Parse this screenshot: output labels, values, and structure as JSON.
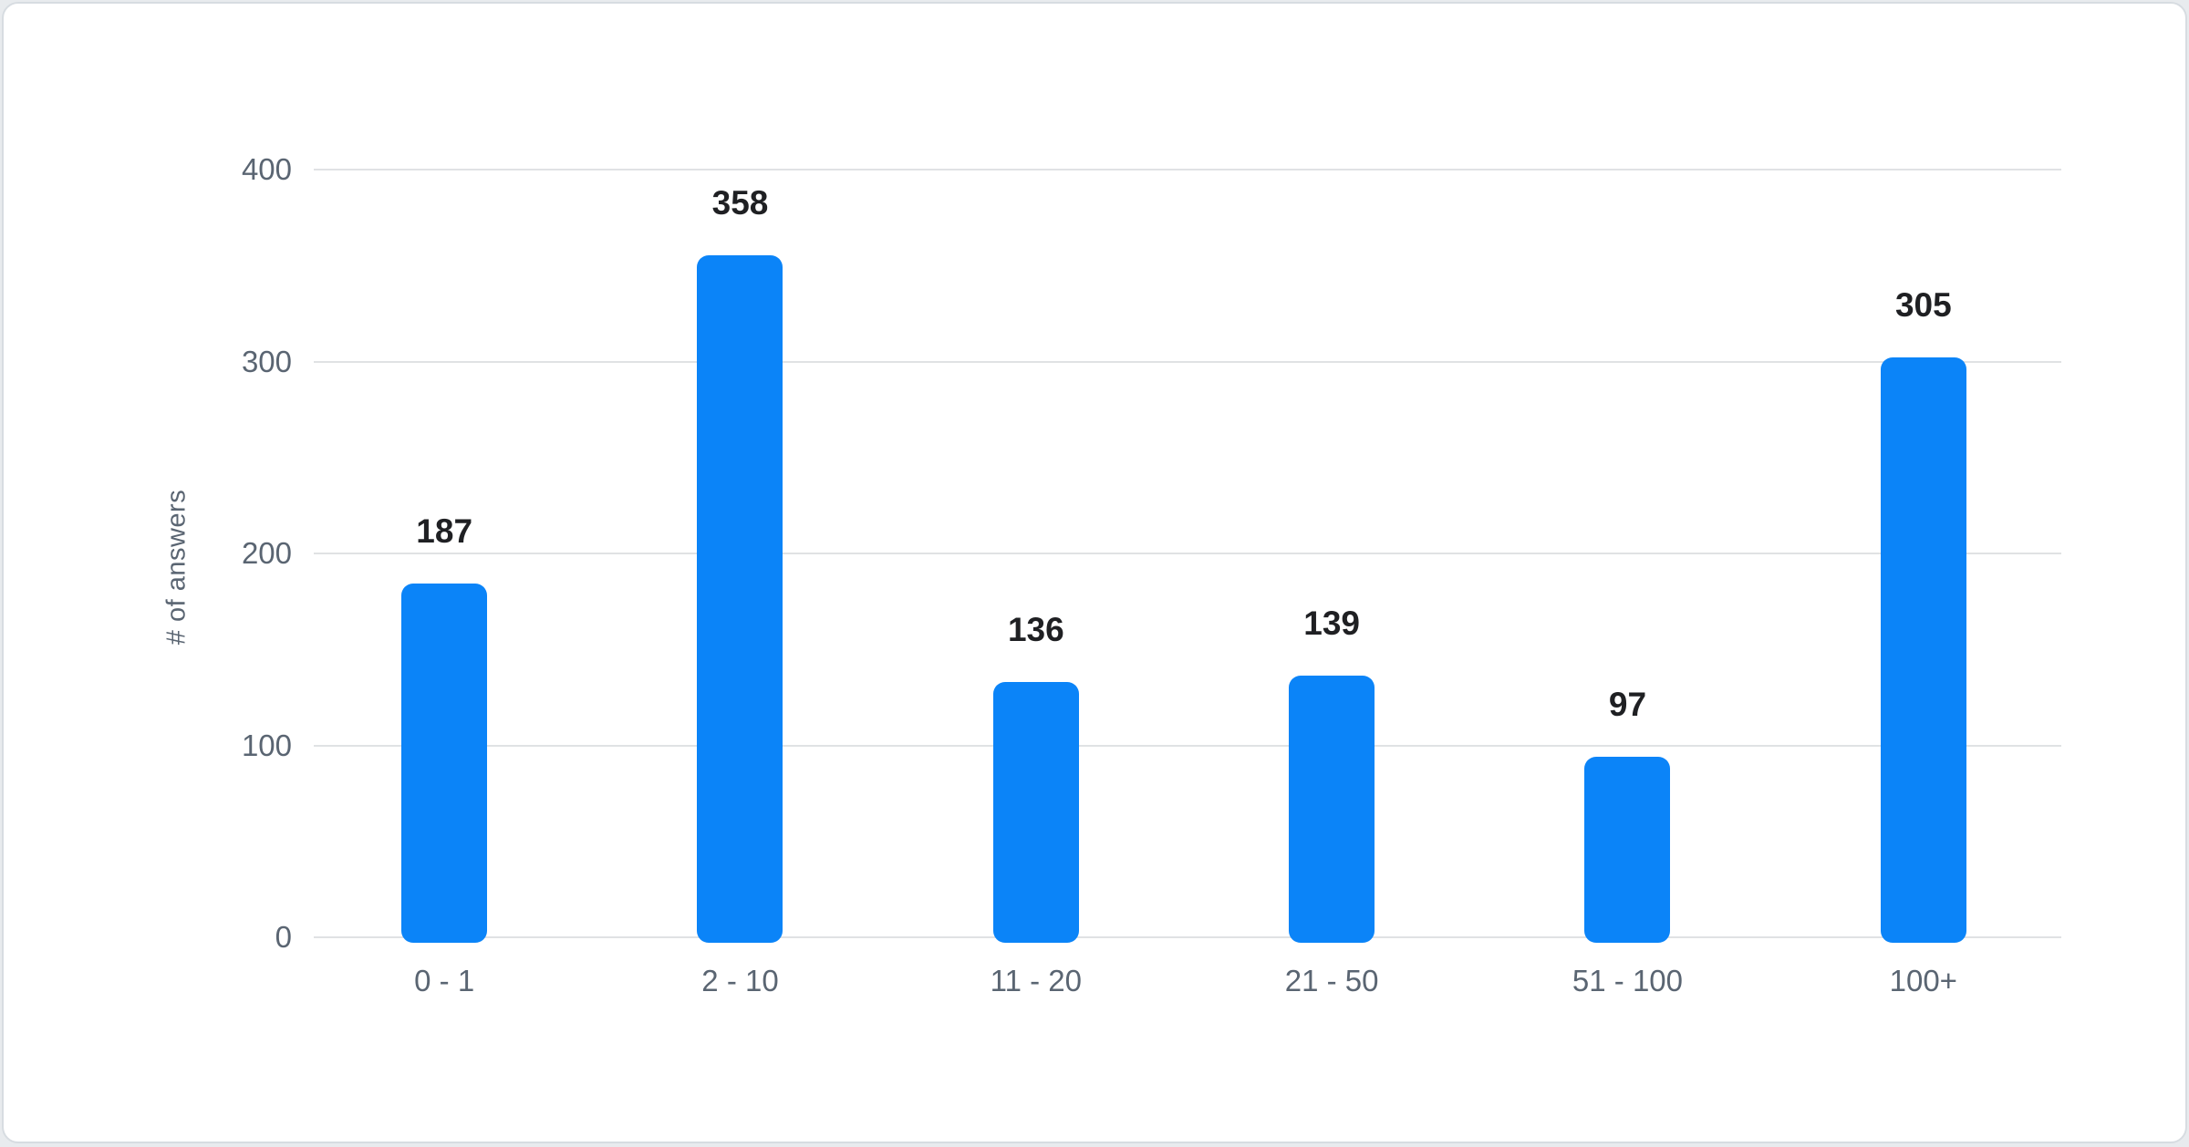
{
  "chart_data": {
    "type": "bar",
    "categories": [
      "0 - 1",
      "2 - 10",
      "11 - 20",
      "21 - 50",
      "51 - 100",
      "100+"
    ],
    "values": [
      187,
      358,
      136,
      139,
      97,
      305
    ],
    "title": "",
    "xlabel": "",
    "ylabel": "# of answers",
    "ylim": [
      0,
      400
    ],
    "yticks": [
      0,
      100,
      200,
      300,
      400
    ],
    "grid": true,
    "legend": false,
    "bar_labels": [
      "187",
      "358",
      "136",
      "139",
      "97",
      "305"
    ],
    "ytick_labels": [
      "0",
      "100",
      "200",
      "300",
      "400"
    ]
  },
  "colors": {
    "bar": "#0b84f8",
    "grid": "#e0e2e4",
    "axis_text": "#5a6572",
    "value_text": "#1f2023",
    "card_border": "#d7dce1",
    "card_background": "#ffffff"
  }
}
